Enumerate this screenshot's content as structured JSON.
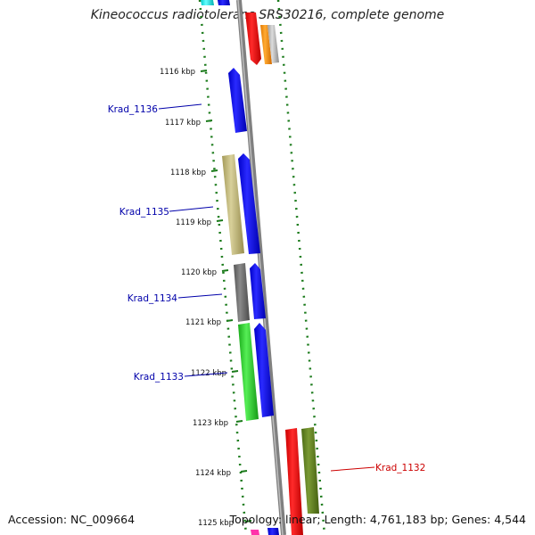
{
  "title": "Kineococcus radiotolerans SRS30216, complete genome",
  "accession": "Accession: NC_009664",
  "summary": "Topology: linear; Length: 4,761,183 bp; Genes: 4,544",
  "ruler": {
    "ticks": [
      "1116 kbp",
      "1117 kbp",
      "1118 kbp",
      "1119 kbp",
      "1120 kbp",
      "1121 kbp",
      "1122 kbp",
      "1123 kbp",
      "1124 kbp",
      "1125 kbp"
    ]
  },
  "gene_labels": [
    {
      "name": "Krad_1136",
      "color": "#0000aa"
    },
    {
      "name": "Krad_1135",
      "color": "#0000aa"
    },
    {
      "name": "Krad_1134",
      "color": "#0000aa"
    },
    {
      "name": "Krad_1133",
      "color": "#0000aa"
    },
    {
      "name": "Krad_1132",
      "color": "#cc0000"
    }
  ],
  "colors": {
    "guide_dots": "#1a7a1a",
    "backbone": "#808080",
    "gene_blue": "#0000ee",
    "gene_red": "#ee0000",
    "gene_khaki": "#b8ae6a",
    "gene_gray": "#666666",
    "gene_green": "#22cc22",
    "gene_olive": "#5c7a1e",
    "gene_orange": "#ff8c00",
    "gene_cyan": "#00e5e5"
  }
}
